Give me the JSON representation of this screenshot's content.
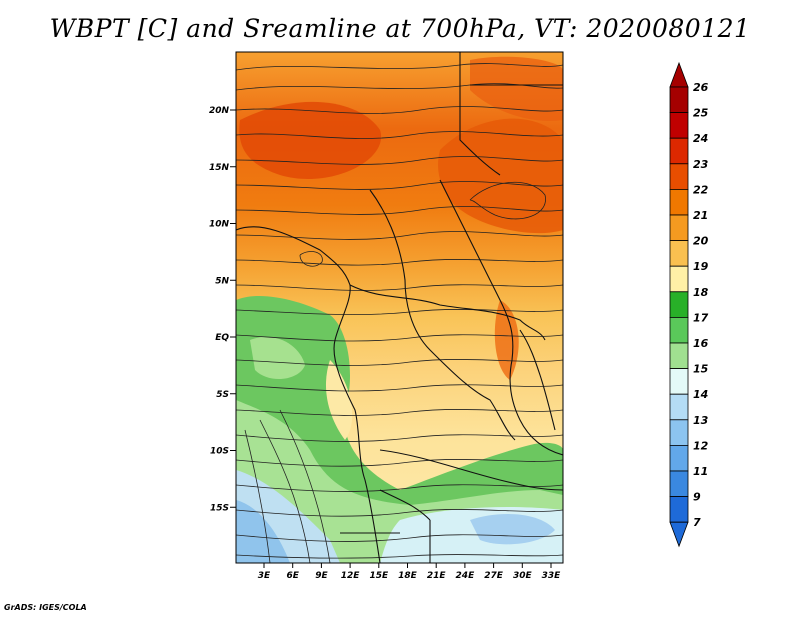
{
  "title": "WBPT [C] and Sreamline at 700hPa, VT: 2020080121",
  "credit": "GrADS: IGES/COLA",
  "map": {
    "lat_labels": [
      "20N",
      "15N",
      "10N",
      "5N",
      "EQ",
      "5S",
      "10S",
      "15S"
    ],
    "lon_labels": [
      "3E",
      "6E",
      "9E",
      "12E",
      "15E",
      "18E",
      "21E",
      "24E",
      "27E",
      "30E",
      "33E"
    ]
  },
  "colorbar": {
    "labels": [
      "26",
      "25",
      "24",
      "23",
      "22",
      "21",
      "20",
      "19",
      "18",
      "17",
      "16",
      "15",
      "14",
      "13",
      "12",
      "11",
      "9",
      "7"
    ],
    "colors": [
      "#a50000",
      "#c00000",
      "#dd2800",
      "#e84e00",
      "#f07800",
      "#f59a20",
      "#f9c050",
      "#fff0a6",
      "#28b028",
      "#5ac85a",
      "#a0e090",
      "#e4faf8",
      "#b4dcf5",
      "#8cc4f0",
      "#62a8ea",
      "#3a88e0",
      "#1e6ad8"
    ]
  }
}
